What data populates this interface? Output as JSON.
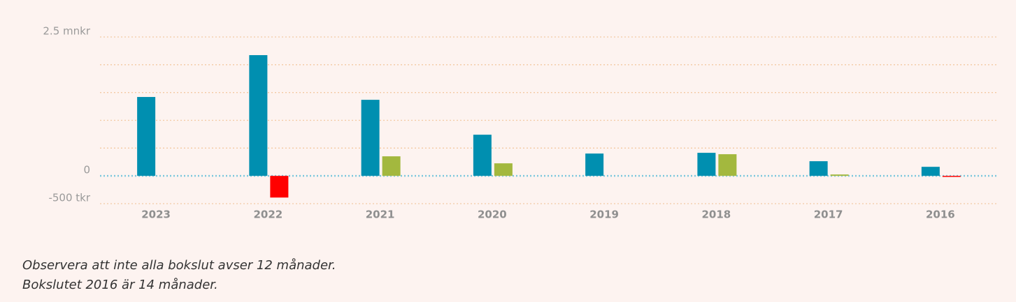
{
  "chart_data": {
    "type": "bar",
    "categories": [
      "2023",
      "2022",
      "2021",
      "2020",
      "2019",
      "2018",
      "2017",
      "2016"
    ],
    "series": [
      {
        "color": "#008fb0",
        "values": [
          1420,
          2173,
          1369,
          741,
          402,
          415,
          264,
          163
        ]
      },
      {
        "color": "#a3b83e",
        "negative_color": "#ff0000",
        "values": [
          null,
          -390,
          352,
          226,
          null,
          390,
          25,
          -13
        ]
      }
    ],
    "ylim": [
      -500,
      2500
    ],
    "yticks": [
      {
        "value": -500,
        "label": "-500 tkr"
      },
      0,
      {
        "value": 500,
        "label": null
      },
      {
        "value": 1000,
        "label": null
      },
      {
        "value": 1500,
        "label": null
      },
      {
        "value": 2000,
        "label": null
      },
      {
        "value": 2500,
        "label": "2.5 mnkr"
      }
    ],
    "grid": true
  },
  "notes": [
    "Observera att inte alla bokslut avser 12 månader.",
    "Bokslutet 2016 är 14 månader."
  ]
}
